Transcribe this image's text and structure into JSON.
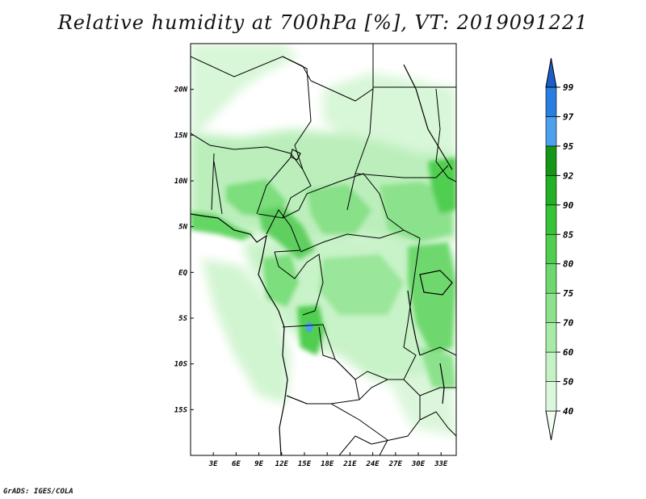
{
  "title": "Relative humidity at 700hPa [%], VT: 2019091221",
  "credit": "GrADS: IGES/COLA",
  "map": {
    "lon_labels": [
      "3E",
      "6E",
      "9E",
      "12E",
      "15E",
      "18E",
      "21E",
      "24E",
      "27E",
      "30E",
      "33E"
    ],
    "lat_labels": [
      "20N",
      "15N",
      "10N",
      "5N",
      "EQ",
      "5S",
      "10S",
      "15S"
    ],
    "extent": {
      "lon": [
        0,
        35
      ],
      "lat": [
        -20,
        25
      ]
    }
  },
  "colorbar": {
    "labels": [
      "40",
      "50",
      "60",
      "70",
      "75",
      "80",
      "85",
      "90",
      "92",
      "95",
      "97",
      "99"
    ],
    "colors": [
      "#f0fdf0",
      "#dcf8dc",
      "#c4f2c4",
      "#a8eaa8",
      "#8ce28c",
      "#6ed86e",
      "#50ce50",
      "#38c238",
      "#24b024",
      "#169616",
      "#4ca0ec",
      "#2a7ee0",
      "#1a5ec8"
    ]
  }
}
